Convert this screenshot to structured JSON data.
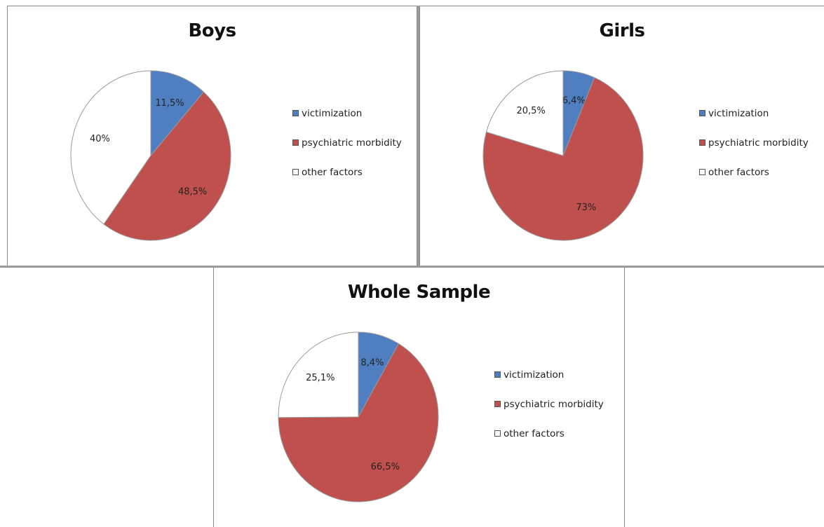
{
  "colors": {
    "victimization": "#4f7fc1",
    "psychiatric_morbidity": "#c0504d",
    "other_factors": "#ffffff",
    "outline": "#9a9a9a"
  },
  "chart_data": [
    {
      "type": "pie",
      "title": "Boys",
      "categories": [
        "victimization",
        "psychiatric morbidity",
        "other factors"
      ],
      "values": [
        11.5,
        48.5,
        40
      ],
      "labels": [
        "11,5%",
        "48,5%",
        "40%"
      ],
      "legend": [
        "victimization",
        "psychiatric morbidity",
        "other factors"
      ],
      "legend_position": "right"
    },
    {
      "type": "pie",
      "title": "Girls",
      "categories": [
        "victimization",
        "psychiatric morbidity",
        "other factors"
      ],
      "values": [
        6.4,
        73,
        20.5
      ],
      "labels": [
        "6,4%",
        "73%",
        "20,5%"
      ],
      "legend": [
        "victimization",
        "psychiatric morbidity",
        "other factors"
      ],
      "legend_position": "right"
    },
    {
      "type": "pie",
      "title": "Whole Sample",
      "categories": [
        "victimization",
        "psychiatric morbidity",
        "other factors"
      ],
      "values": [
        8.4,
        66.5,
        25.1
      ],
      "labels": [
        "8,4%",
        "66,5%",
        "25,1%"
      ],
      "legend": [
        "victimization",
        "psychiatric morbidity",
        "other factors"
      ],
      "legend_position": "right"
    }
  ]
}
